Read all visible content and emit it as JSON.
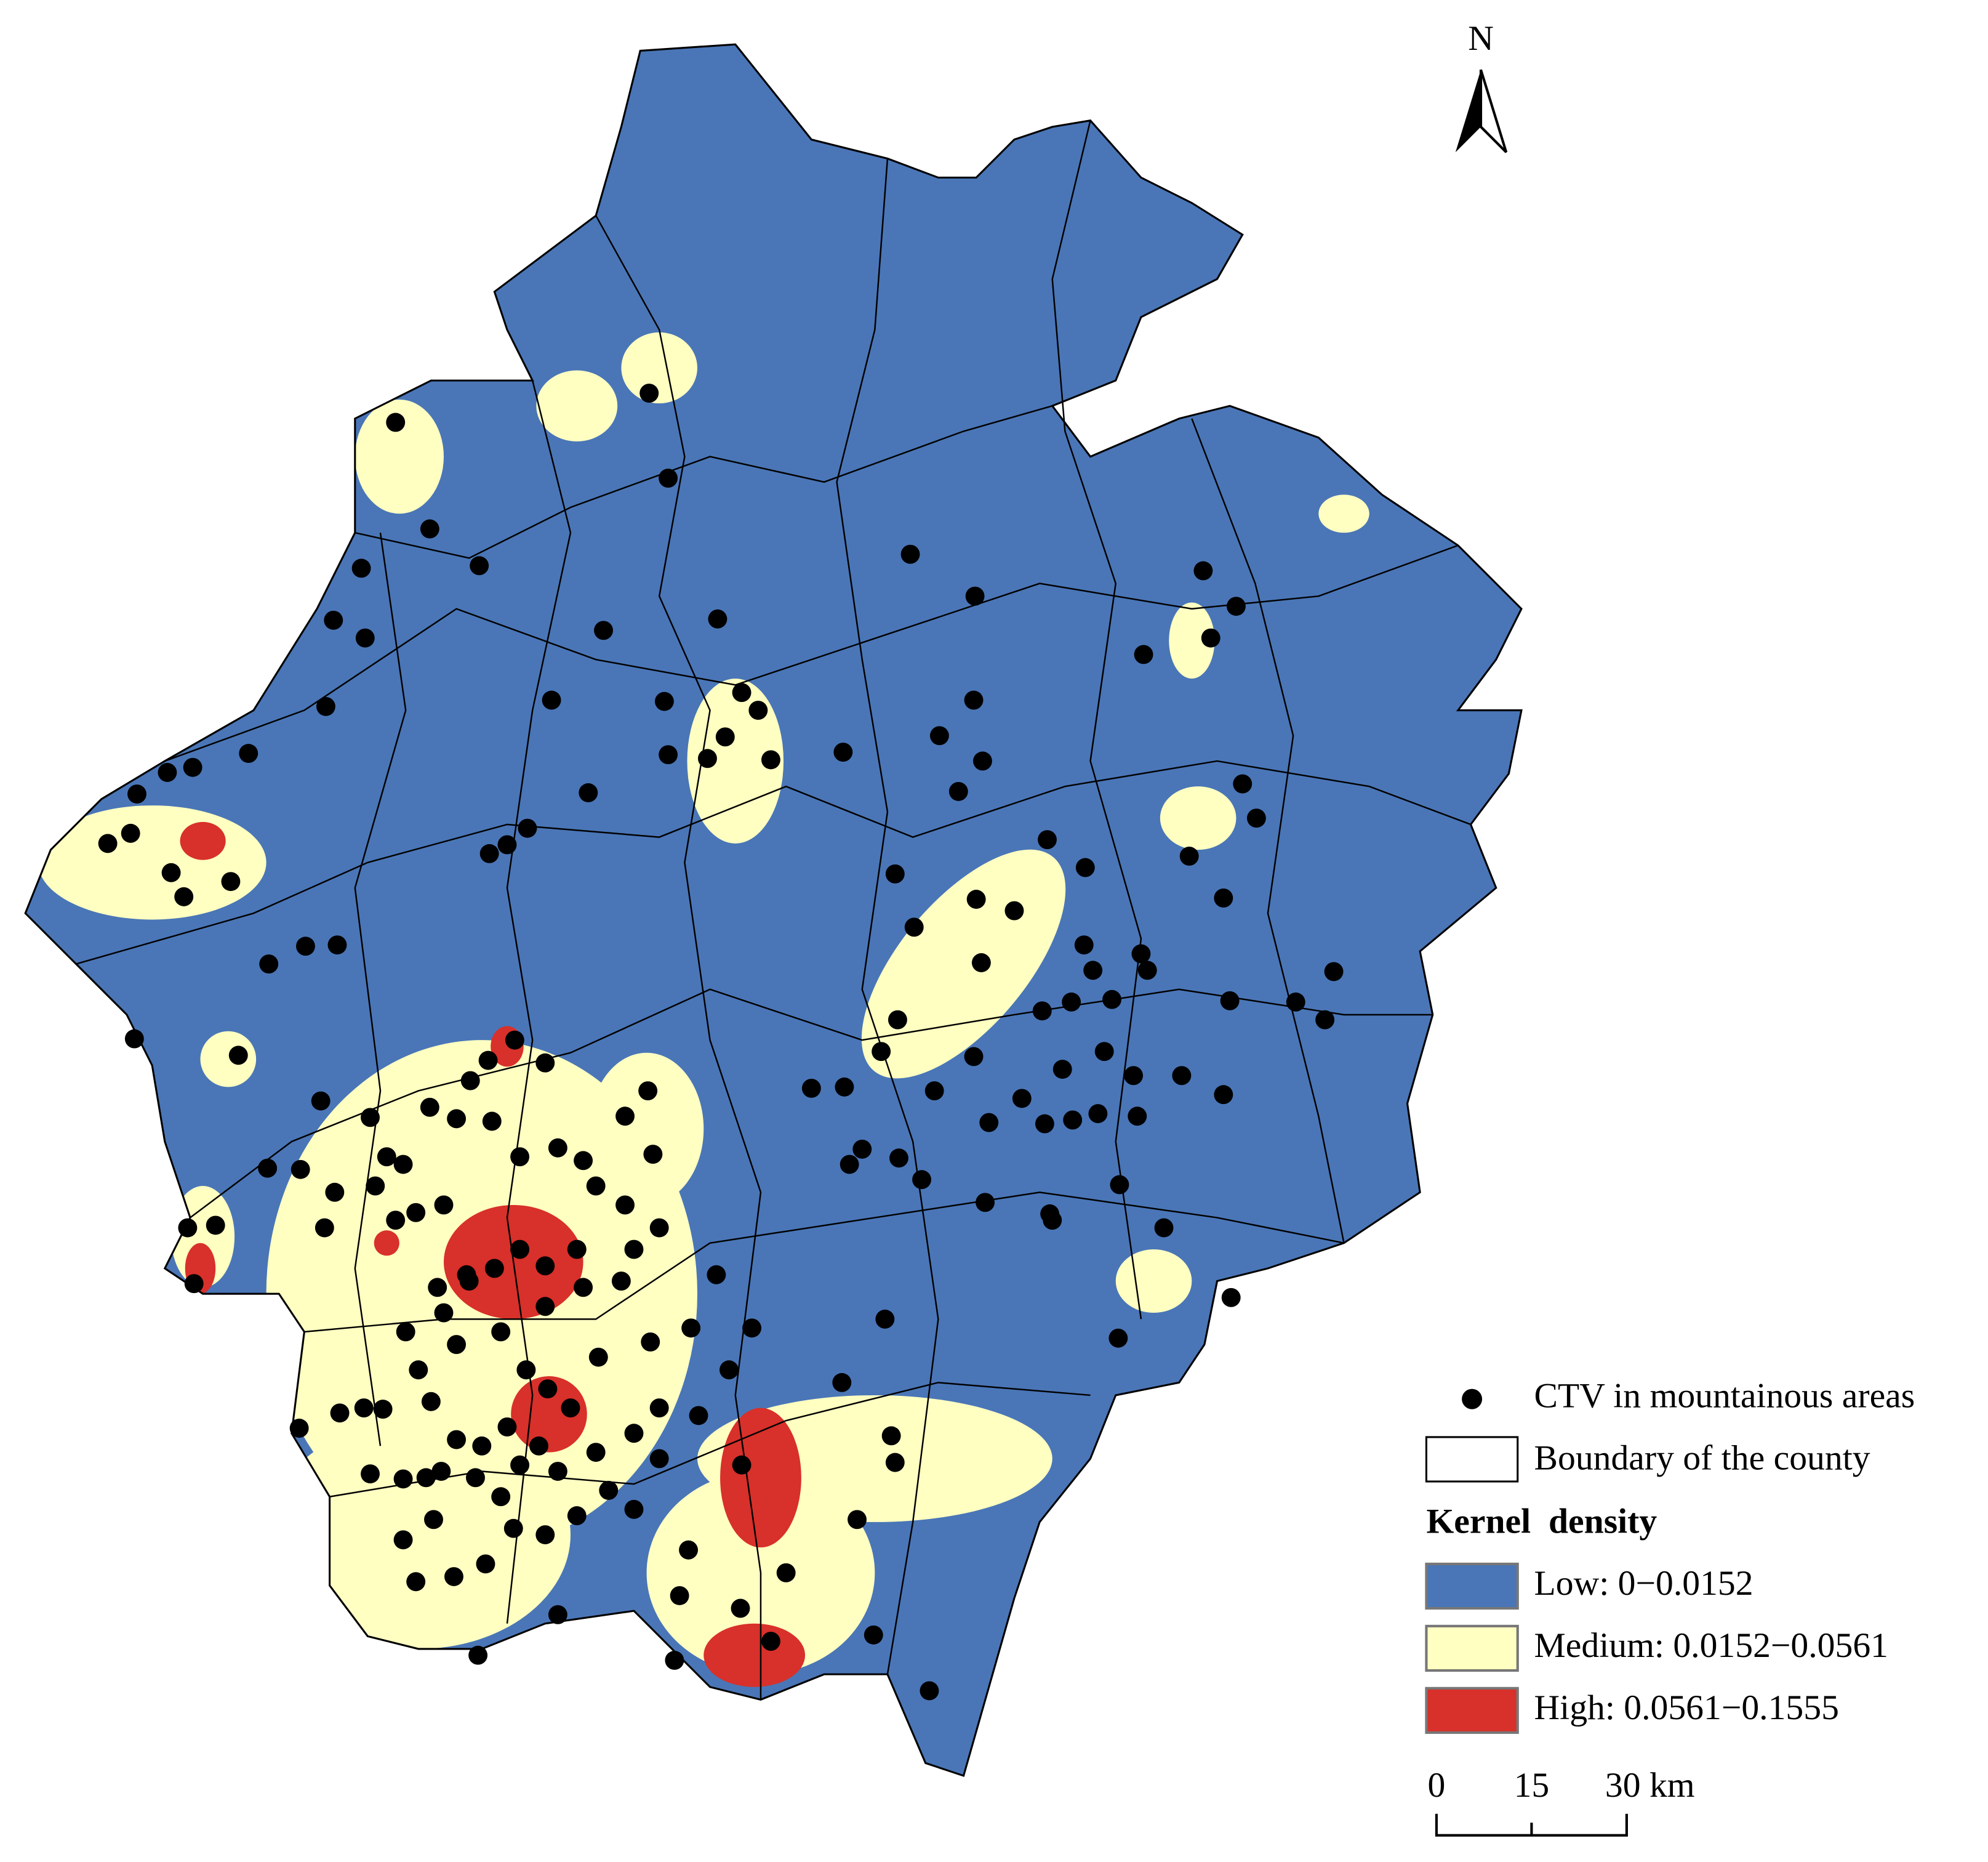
{
  "north_arrow": {
    "label": "N"
  },
  "legend": {
    "items": [
      {
        "label": "CTV in mountainous areas"
      },
      {
        "label": "Boundary of the county"
      }
    ],
    "title": "Kernel  density",
    "classes": [
      {
        "label": "Low: 0−0.0152",
        "color": "#4a76b7"
      },
      {
        "label": "Medium: 0.0152−0.0561",
        "color": "#ffffc2"
      },
      {
        "label": "High: 0.0561−0.1555",
        "color": "#d8302a"
      }
    ]
  },
  "scale_bar": {
    "labels": [
      "0",
      "15",
      "30 km"
    ]
  }
}
